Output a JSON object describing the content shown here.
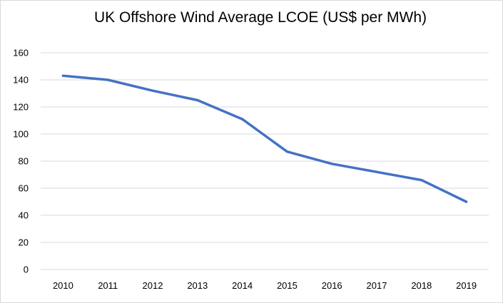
{
  "chart_data": {
    "type": "line",
    "title": "UK Offshore Wind Average LCOE (US$ per MWh)",
    "xlabel": "",
    "ylabel": "",
    "categories": [
      "2010",
      "2011",
      "2012",
      "2013",
      "2014",
      "2015",
      "2016",
      "2017",
      "2018",
      "2019"
    ],
    "series": [
      {
        "values": [
          143,
          140,
          132,
          125,
          111,
          87,
          78,
          72,
          66,
          50
        ],
        "color": "#4472c4"
      }
    ],
    "ylim": [
      0,
      160
    ],
    "yticks": [
      0,
      20,
      40,
      60,
      80,
      100,
      120,
      140,
      160
    ],
    "grid": true,
    "legend": "none"
  }
}
